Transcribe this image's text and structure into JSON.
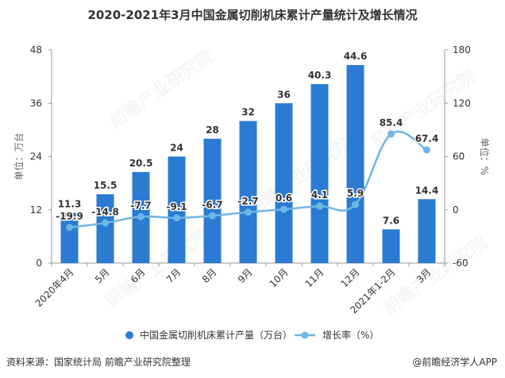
{
  "chart_data": {
    "type": "bar+line",
    "title": "2020-2021年3月中国金属切削机床累计产量统计及增长情况",
    "categories": [
      "2020年4月",
      "5月",
      "6月",
      "7月",
      "8月",
      "9月",
      "10月",
      "11月",
      "12月",
      "2021年1-2月",
      "3月"
    ],
    "series": [
      {
        "name": "中国金属切削机床累计产量（万台）",
        "type": "bar",
        "axis": "left",
        "values": [
          11.3,
          15.5,
          20.5,
          24,
          28,
          32,
          36,
          40.3,
          44.6,
          7.6,
          14.4
        ]
      },
      {
        "name": "增长率（%）",
        "type": "line",
        "axis": "right",
        "values": [
          -19.9,
          -14.8,
          -7.7,
          -9.1,
          -6.7,
          -2.7,
          0.6,
          4.1,
          5.9,
          85.4,
          67.4
        ]
      }
    ],
    "ylabel": "单位：万台",
    "y2label": "单位：%",
    "ylim": [
      0,
      48
    ],
    "yticks": [
      0,
      12,
      24,
      36,
      48
    ],
    "y2lim": [
      -60,
      180
    ],
    "y2ticks": [
      -60,
      0,
      60,
      120,
      180
    ],
    "legend_position": "bottom"
  },
  "colors": {
    "bar": "#2a7bd1",
    "line": "#6eb6e6",
    "axis": "#999999",
    "text": "#333333"
  },
  "footer": {
    "source": "资料来源：国家统计局 前瞻产业研究院整理",
    "brand": "@前瞻经济学人APP"
  },
  "watermark": {
    "text": "前瞻产业研究院"
  }
}
